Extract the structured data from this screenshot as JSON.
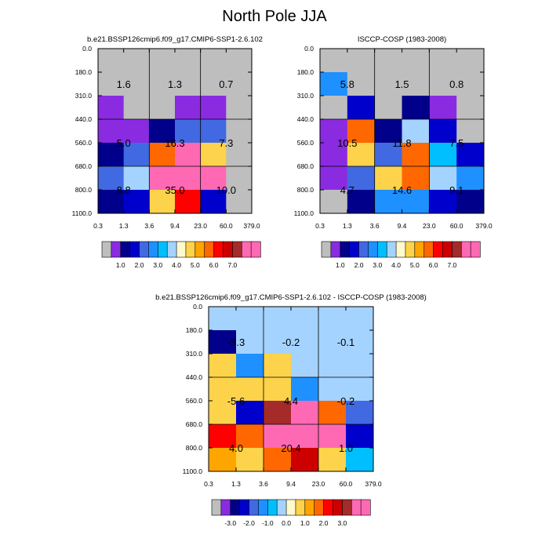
{
  "figure": {
    "title": "North Pole JJA"
  },
  "chart_data": [
    {
      "type": "heatmap",
      "title": "b.e21.BSSP126cmip6.f09_g17.CMIP6-SSP1-2.6.102",
      "xlabel": "",
      "ylabel": "",
      "x_tick_labels": [
        "0.3",
        "1.3",
        "3.6",
        "9.4",
        "23.0",
        "60.0",
        "379.0"
      ],
      "y_tick_labels": [
        "0.0",
        "180.0",
        "310.0",
        "440.0",
        "560.0",
        "680.0",
        "800.0",
        "1100.0"
      ],
      "cells": [
        [
          0,
          0,
          0,
          0,
          0,
          0
        ],
        [
          0,
          0,
          0,
          0,
          0,
          0
        ],
        [
          1,
          0,
          0,
          1,
          1,
          0
        ],
        [
          1,
          1,
          2,
          4,
          4,
          0
        ],
        [
          2,
          4,
          11,
          16,
          9,
          0
        ],
        [
          4,
          7,
          16,
          16,
          16,
          0
        ],
        [
          2,
          3,
          9,
          12,
          3,
          0
        ]
      ],
      "box_values": [
        [
          "1.6",
          "1.3",
          "0.7"
        ],
        [
          "5.0",
          "16.3",
          "7.3"
        ],
        [
          "8.8",
          "35.0",
          "10.0"
        ]
      ],
      "colorbar_labels": [
        "1.0",
        "2.0",
        "3.0",
        "4.0",
        "5.0",
        "6.0",
        "7.0"
      ]
    },
    {
      "type": "heatmap",
      "title": "ISCCP-COSP (1983-2008)",
      "xlabel": "",
      "ylabel": "",
      "x_tick_labels": [
        "0.3",
        "1.3",
        "3.6",
        "9.4",
        "23.0",
        "60.0",
        "379.0"
      ],
      "y_tick_labels": [
        "0.0",
        "180.0",
        "310.0",
        "440.0",
        "560.0",
        "680.0",
        "800.0",
        "1100.0"
      ],
      "cells": [
        [
          0,
          0,
          0,
          0,
          0,
          0
        ],
        [
          5,
          0,
          0,
          0,
          0,
          0
        ],
        [
          0,
          3,
          0,
          2,
          1,
          0
        ],
        [
          1,
          11,
          2,
          7,
          3,
          0
        ],
        [
          1,
          9,
          4,
          11,
          6,
          3
        ],
        [
          1,
          4,
          9,
          11,
          7,
          5
        ],
        [
          0,
          2,
          5,
          5,
          3,
          2
        ]
      ],
      "box_values": [
        [
          "5.8",
          "1.5",
          "0.8"
        ],
        [
          "10.5",
          "11.8",
          "7.5"
        ],
        [
          "4.7",
          "14.6",
          "9.1"
        ]
      ],
      "colorbar_labels": [
        "1.0",
        "2.0",
        "3.0",
        "4.0",
        "5.0",
        "6.0",
        "7.0"
      ]
    },
    {
      "type": "heatmap",
      "title": "b.e21.BSSP126cmip6.f09_g17.CMIP6-SSP1-2.6.102 - ISCCP-COSP (1983-2008)",
      "xlabel": "",
      "ylabel": "",
      "x_tick_labels": [
        "0.3",
        "1.3",
        "3.6",
        "9.4",
        "23.0",
        "60.0",
        "379.0"
      ],
      "y_tick_labels": [
        "0.0",
        "180.0",
        "310.0",
        "440.0",
        "560.0",
        "680.0",
        "800.0",
        "1100.0"
      ],
      "cells": [
        [
          7,
          7,
          7,
          7,
          7,
          7
        ],
        [
          2,
          7,
          7,
          7,
          7,
          7
        ],
        [
          9,
          5,
          9,
          7,
          7,
          7
        ],
        [
          9,
          9,
          9,
          5,
          7,
          7
        ],
        [
          9,
          3,
          14,
          15,
          11,
          4
        ],
        [
          12,
          11,
          16,
          16,
          16,
          3
        ],
        [
          10,
          9,
          11,
          13,
          9,
          6
        ]
      ],
      "box_values": [
        [
          "-3.3",
          "-0.2",
          "-0.1"
        ],
        [
          "-5.6",
          "4.4",
          "-0.2"
        ],
        [
          "4.0",
          "20.4",
          "1.0"
        ]
      ],
      "colorbar_labels": [
        "-3.0",
        "-2.0",
        "-1.0",
        "0.0",
        "1.0",
        "2.0",
        "3.0"
      ]
    }
  ],
  "palette": [
    "#bebebe",
    "#8a2be2",
    "#00008b",
    "#0000cd",
    "#4169e1",
    "#1e90ff",
    "#00bfff",
    "#a4d3ff",
    "#fffacd",
    "#fcd34a",
    "#ffa500",
    "#ff6700",
    "#ff0000",
    "#cd0000",
    "#a52a2a",
    "#ff69b4",
    "#ff69b4"
  ]
}
